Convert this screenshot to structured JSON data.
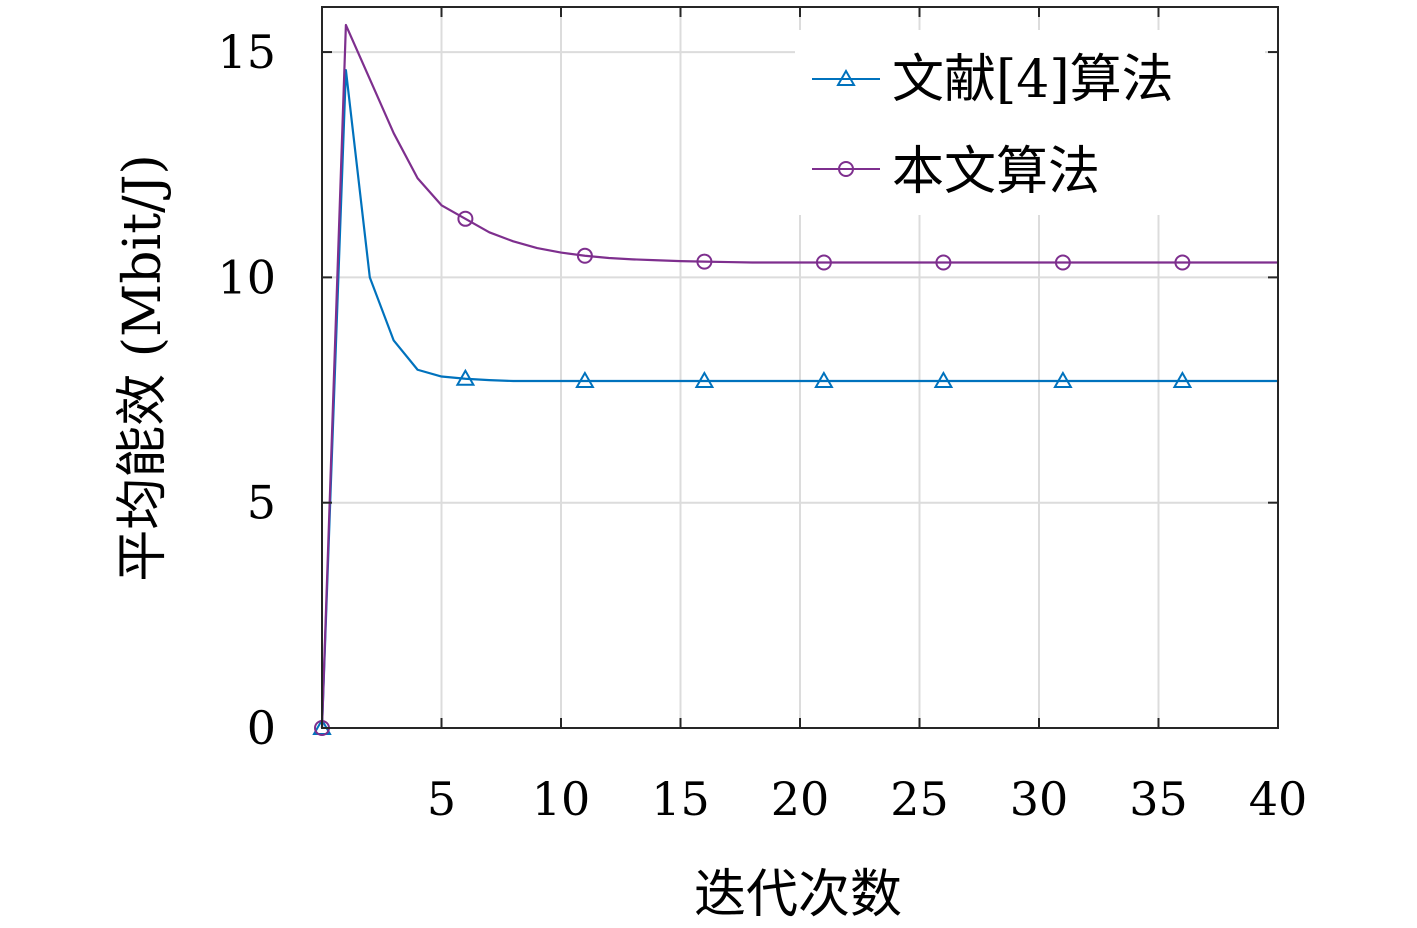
{
  "chart_data": {
    "type": "line",
    "xlabel": "迭代次数",
    "ylabel": "平均能效 (Mbit/J)",
    "xlim": [
      0,
      40
    ],
    "ylim": [
      0,
      16
    ],
    "xticks": [
      5,
      10,
      15,
      20,
      25,
      30,
      35,
      40
    ],
    "yticks": [
      0,
      5,
      10,
      15
    ],
    "grid": true,
    "legend_position": "top-right",
    "series": [
      {
        "name": "文献[4]算法",
        "color": "#0072BD",
        "marker": "triangle",
        "x": [
          0,
          1,
          2,
          3,
          4,
          5,
          6,
          7,
          8,
          10,
          15,
          20,
          25,
          30,
          35,
          40
        ],
        "y": [
          0,
          14.6,
          10.0,
          8.6,
          7.95,
          7.8,
          7.75,
          7.72,
          7.7,
          7.7,
          7.7,
          7.7,
          7.7,
          7.7,
          7.7,
          7.7
        ],
        "marker_x": [
          0,
          6,
          11,
          16,
          21,
          26,
          31,
          36
        ]
      },
      {
        "name": "本文算法",
        "color": "#7E2F8E",
        "marker": "circle",
        "x": [
          0,
          1,
          2,
          3,
          4,
          5,
          6,
          7,
          8,
          9,
          10,
          11,
          12,
          13,
          14,
          15,
          16,
          17,
          18,
          20,
          25,
          30,
          35,
          40
        ],
        "y": [
          0,
          15.6,
          14.4,
          13.2,
          12.2,
          11.6,
          11.3,
          11.0,
          10.8,
          10.65,
          10.55,
          10.48,
          10.43,
          10.4,
          10.38,
          10.36,
          10.35,
          10.34,
          10.33,
          10.33,
          10.33,
          10.33,
          10.33,
          10.33
        ],
        "marker_x": [
          0,
          6,
          11,
          16,
          21,
          26,
          31,
          36
        ]
      }
    ]
  }
}
